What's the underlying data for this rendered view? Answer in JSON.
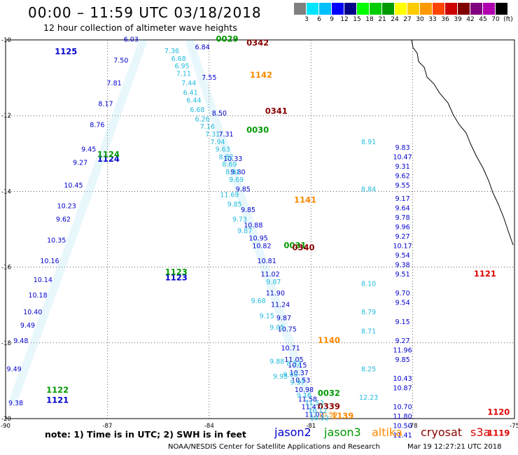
{
  "header": {
    "title": "00:00 – 11:59 UTC 03/18/2018",
    "subtitle": "12 hour collection of altimeter wave heights"
  },
  "color_scale": {
    "labels": [
      "3",
      "6",
      "9",
      "12",
      "15",
      "18",
      "21",
      "24",
      "27",
      "30",
      "33",
      "36",
      "39",
      "42",
      "45",
      "70",
      "(ft)"
    ],
    "colors": [
      "#808080",
      "#00e5ff",
      "#00bfff",
      "#0000ff",
      "#00008b",
      "#00ff00",
      "#00cc00",
      "#009900",
      "#ffff00",
      "#ffcc00",
      "#ff9900",
      "#ff4400",
      "#cc0000",
      "#800000",
      "#800080",
      "#b000b0",
      "#000000"
    ]
  },
  "chart_data": {
    "type": "scatter",
    "title": "00:00 – 11:59 UTC 03/18/2018",
    "subtitle": "12 hour collection of altimeter wave heights",
    "x_ticks": [
      "-90",
      "-87",
      "-84",
      "-81",
      "-78",
      "-75"
    ],
    "y_ticks": [
      "-10",
      "-12",
      "-14",
      "-16",
      "-18",
      "-20"
    ],
    "xlim": [
      -90,
      -75
    ],
    "ylim": [
      -20,
      -10
    ],
    "grid": true,
    "tracks": [
      {
        "satellite": "jason2",
        "color": "#0000cc",
        "pass_labels": [
          {
            "text": "1125",
            "lon": -88.55,
            "lat": -10.38,
            "color": "#0000cc"
          },
          {
            "text": "1124",
            "lon": -87.3,
            "lat": -13.22,
            "color": "#0000cc"
          },
          {
            "text": "1123",
            "lon": -85.3,
            "lat": -16.35,
            "color": "#0000cc"
          },
          {
            "text": "1121",
            "lon": -88.8,
            "lat": -19.58,
            "color": "#0000cc"
          }
        ],
        "points": [
          {
            "lon": -86.3,
            "lat": -10.05,
            "swh": "6.03"
          },
          {
            "lon": -86.6,
            "lat": -10.6,
            "swh": "7.50"
          },
          {
            "lon": -86.8,
            "lat": -11.2,
            "swh": "7.81"
          },
          {
            "lon": -87.05,
            "lat": -11.75,
            "swh": "8.17"
          },
          {
            "lon": -87.3,
            "lat": -12.3,
            "swh": "8.76"
          },
          {
            "lon": -87.55,
            "lat": -12.95,
            "swh": "9.45"
          },
          {
            "lon": -87.8,
            "lat": -13.3,
            "swh": "9.27"
          },
          {
            "lon": -88.0,
            "lat": -13.9,
            "swh": "10.45"
          },
          {
            "lon": -88.2,
            "lat": -14.45,
            "swh": "10.23"
          },
          {
            "lon": -88.3,
            "lat": -14.8,
            "swh": "9.62"
          },
          {
            "lon": -88.5,
            "lat": -15.35,
            "swh": "10.35"
          },
          {
            "lon": -88.7,
            "lat": -15.9,
            "swh": "10.16"
          },
          {
            "lon": -88.9,
            "lat": -16.4,
            "swh": "10.14"
          },
          {
            "lon": -89.05,
            "lat": -16.8,
            "swh": "10.18"
          },
          {
            "lon": -89.2,
            "lat": -17.25,
            "swh": "10.40"
          },
          {
            "lon": -89.35,
            "lat": -17.6,
            "swh": "9.49"
          },
          {
            "lon": -89.55,
            "lat": -18.0,
            "swh": "9.48"
          },
          {
            "lon": -89.75,
            "lat": -18.75,
            "swh": "9.49"
          },
          {
            "lon": -89.7,
            "lat": -19.65,
            "swh": "9.38"
          },
          {
            "lon": -84.2,
            "lat": -10.25,
            "swh": "6.84"
          },
          {
            "lon": -84.0,
            "lat": -11.05,
            "swh": "7.55"
          },
          {
            "lon": -83.7,
            "lat": -12.0,
            "swh": "8.50"
          },
          {
            "lon": -83.5,
            "lat": -12.55,
            "swh": "7.31"
          },
          {
            "lon": -83.3,
            "lat": -13.2,
            "swh": "10.33"
          },
          {
            "lon": -83.15,
            "lat": -13.55,
            "swh": "9.80"
          },
          {
            "lon": -83.0,
            "lat": -14.0,
            "swh": "9.85"
          },
          {
            "lon": -82.85,
            "lat": -14.55,
            "swh": "9.85"
          },
          {
            "lon": -82.7,
            "lat": -14.95,
            "swh": "10.88"
          },
          {
            "lon": -82.55,
            "lat": -15.3,
            "swh": "10.95"
          },
          {
            "lon": -82.45,
            "lat": -15.5,
            "swh": "10.82"
          },
          {
            "lon": -82.3,
            "lat": -15.9,
            "swh": "10.81"
          },
          {
            "lon": -82.2,
            "lat": -16.25,
            "swh": "11.02"
          },
          {
            "lon": -82.05,
            "lat": -16.75,
            "swh": "11.90"
          },
          {
            "lon": -81.9,
            "lat": -17.05,
            "swh": "11.24"
          },
          {
            "lon": -81.8,
            "lat": -17.4,
            "swh": "9.87"
          },
          {
            "lon": -81.7,
            "lat": -17.7,
            "swh": "10.75"
          },
          {
            "lon": -81.6,
            "lat": -18.2,
            "swh": "10.71"
          },
          {
            "lon": -81.5,
            "lat": -18.5,
            "swh": "11.05"
          },
          {
            "lon": -81.4,
            "lat": -18.65,
            "swh": "10.15"
          },
          {
            "lon": -81.35,
            "lat": -18.85,
            "swh": "10.37"
          },
          {
            "lon": -81.3,
            "lat": -19.05,
            "swh": "10.53"
          },
          {
            "lon": -81.2,
            "lat": -19.3,
            "swh": "10.98"
          },
          {
            "lon": -81.1,
            "lat": -19.55,
            "swh": "11.58"
          },
          {
            "lon": -81.0,
            "lat": -19.75,
            "swh": "11.47"
          },
          {
            "lon": -80.9,
            "lat": -19.95,
            "swh": "11.02"
          },
          {
            "lon": -78.3,
            "lat": -12.9,
            "swh": "9.83"
          },
          {
            "lon": -78.3,
            "lat": -13.15,
            "swh": "10.47"
          },
          {
            "lon": -78.3,
            "lat": -13.4,
            "swh": "9.31"
          },
          {
            "lon": -78.3,
            "lat": -13.65,
            "swh": "9.62"
          },
          {
            "lon": -78.3,
            "lat": -13.9,
            "swh": "9.55"
          },
          {
            "lon": -78.3,
            "lat": -14.25,
            "swh": "9.17"
          },
          {
            "lon": -78.3,
            "lat": -14.5,
            "swh": "9.64"
          },
          {
            "lon": -78.3,
            "lat": -14.75,
            "swh": "9.78"
          },
          {
            "lon": -78.3,
            "lat": -15.0,
            "swh": "9.96"
          },
          {
            "lon": -78.3,
            "lat": -15.25,
            "swh": "9.27"
          },
          {
            "lon": -78.3,
            "lat": -15.5,
            "swh": "10.17"
          },
          {
            "lon": -78.3,
            "lat": -15.75,
            "swh": "9.54"
          },
          {
            "lon": -78.3,
            "lat": -16.0,
            "swh": "9.38"
          },
          {
            "lon": -78.3,
            "lat": -16.25,
            "swh": "9.51"
          },
          {
            "lon": -78.3,
            "lat": -16.75,
            "swh": "9.70"
          },
          {
            "lon": -78.3,
            "lat": -17.0,
            "swh": "9.54"
          },
          {
            "lon": -78.3,
            "lat": -17.5,
            "swh": "9.15"
          },
          {
            "lon": -78.3,
            "lat": -18.0,
            "swh": "9.27"
          },
          {
            "lon": -78.3,
            "lat": -18.25,
            "swh": "11.96"
          },
          {
            "lon": -78.3,
            "lat": -18.5,
            "swh": "9.85"
          },
          {
            "lon": -78.3,
            "lat": -19.0,
            "swh": "10.43"
          },
          {
            "lon": -78.3,
            "lat": -19.25,
            "swh": "10.87"
          },
          {
            "lon": -78.3,
            "lat": -19.75,
            "swh": "10.70"
          },
          {
            "lon": -78.3,
            "lat": -20.0,
            "swh": "11.80"
          },
          {
            "lon": -78.3,
            "lat": -20.25,
            "swh": "10.50"
          },
          {
            "lon": -78.3,
            "lat": -20.5,
            "swh": "11.41"
          }
        ]
      },
      {
        "satellite": "jason3",
        "color": "#009900",
        "pass_labels": [
          {
            "text": "0029",
            "lon": -83.8,
            "lat": -10.05,
            "color": "#009900"
          },
          {
            "text": "0030",
            "lon": -82.9,
            "lat": -12.45,
            "color": "#009900"
          },
          {
            "text": "1124",
            "lon": -87.3,
            "lat": -13.1,
            "color": "#009900"
          },
          {
            "text": "1123",
            "lon": -85.3,
            "lat": -16.2,
            "color": "#009900"
          },
          {
            "text": "0031",
            "lon": -81.8,
            "lat": -15.5,
            "color": "#009900"
          },
          {
            "text": "0032",
            "lon": -80.8,
            "lat": -19.4,
            "color": "#009900"
          },
          {
            "text": "1122",
            "lon": -88.8,
            "lat": -19.32,
            "color": "#009900"
          }
        ],
        "points": []
      },
      {
        "satellite": "altika",
        "color": "#ff8800",
        "pass_labels": [
          {
            "text": "1142",
            "lon": -82.8,
            "lat": -11.0,
            "color": "#ff8800"
          },
          {
            "text": "1141",
            "lon": -81.5,
            "lat": -14.3,
            "color": "#ff8800"
          },
          {
            "text": "1140",
            "lon": -80.8,
            "lat": -18.0,
            "color": "#ff8800"
          },
          {
            "text": "1139",
            "lon": -80.4,
            "lat": -20.0,
            "color": "#ff8800"
          }
        ],
        "points": [
          {
            "lon": -80.5,
            "lat": -19.95,
            "swh": "10.59"
          }
        ]
      },
      {
        "satellite": "cryosat",
        "color": "#880000",
        "pass_labels": [
          {
            "text": "0342",
            "lon": -82.9,
            "lat": -10.15,
            "color": "#880000"
          },
          {
            "text": "0341",
            "lon": -82.35,
            "lat": -11.95,
            "color": "#880000"
          },
          {
            "text": "0340",
            "lon": -81.55,
            "lat": -15.55,
            "color": "#880000"
          },
          {
            "text": "0339",
            "lon": -80.8,
            "lat": -19.75,
            "color": "#880000"
          }
        ],
        "points": []
      },
      {
        "satellite": "s3a",
        "color": "#dd0000",
        "pass_labels": [
          {
            "text": "1121",
            "lon": -76.2,
            "lat": -16.25,
            "color": "#dd0000"
          },
          {
            "text": "1120",
            "lon": -75.8,
            "lat": -19.9,
            "color": "#dd0000"
          },
          {
            "text": "1119",
            "lon": -75.8,
            "lat": -20.45,
            "color": "#dd0000"
          }
        ],
        "points": []
      },
      {
        "satellite": "cyan-track",
        "color": "#22bbdd",
        "pass_labels": [],
        "points": [
          {
            "lon": -85.1,
            "lat": -10.35,
            "swh": "7.36"
          },
          {
            "lon": -84.9,
            "lat": -10.55,
            "swh": "6.68"
          },
          {
            "lon": -84.8,
            "lat": -10.75,
            "swh": "6.95"
          },
          {
            "lon": -84.75,
            "lat": -10.95,
            "swh": "7.11"
          },
          {
            "lon": -84.6,
            "lat": -11.2,
            "swh": "7.44"
          },
          {
            "lon": -84.55,
            "lat": -11.45,
            "swh": "6.41"
          },
          {
            "lon": -84.45,
            "lat": -11.65,
            "swh": "6.44"
          },
          {
            "lon": -84.35,
            "lat": -11.9,
            "swh": "6.68"
          },
          {
            "lon": -84.2,
            "lat": -12.15,
            "swh": "6.26"
          },
          {
            "lon": -84.05,
            "lat": -12.35,
            "swh": "7.16"
          },
          {
            "lon": -83.9,
            "lat": -12.55,
            "swh": "7.31"
          },
          {
            "lon": -83.75,
            "lat": -12.75,
            "swh": "7.94"
          },
          {
            "lon": -83.6,
            "lat": -12.95,
            "swh": "9.63"
          },
          {
            "lon": -83.5,
            "lat": -13.15,
            "swh": "8.82"
          },
          {
            "lon": -83.4,
            "lat": -13.35,
            "swh": "8.69"
          },
          {
            "lon": -83.3,
            "lat": -13.55,
            "swh": "8.91"
          },
          {
            "lon": -83.2,
            "lat": -13.75,
            "swh": "9.69"
          },
          {
            "lon": -79.3,
            "lat": -12.75,
            "swh": "8.91"
          },
          {
            "lon": -79.3,
            "lat": -14.0,
            "swh": "8.84"
          },
          {
            "lon": -79.3,
            "lat": -16.5,
            "swh": "8.10"
          },
          {
            "lon": -79.3,
            "lat": -17.25,
            "swh": "8.79"
          },
          {
            "lon": -79.3,
            "lat": -17.75,
            "swh": "8.71"
          },
          {
            "lon": -79.3,
            "lat": -18.75,
            "swh": "8.25"
          },
          {
            "lon": -79.3,
            "lat": -19.5,
            "swh": "12.23"
          },
          {
            "lon": -81.5,
            "lat": -18.6,
            "swh": "8.52"
          },
          {
            "lon": -81.6,
            "lat": -18.9,
            "swh": "9.00"
          },
          {
            "lon": -81.9,
            "lat": -18.95,
            "swh": "9.95"
          },
          {
            "lon": -81.4,
            "lat": -19.1,
            "swh": "9.97"
          },
          {
            "lon": -81.2,
            "lat": -19.45,
            "swh": "9.16"
          },
          {
            "lon": -80.9,
            "lat": -19.65,
            "swh": "11.53"
          },
          {
            "lon": -80.8,
            "lat": -19.85,
            "swh": "10.12"
          },
          {
            "lon": -80.75,
            "lat": -20.05,
            "swh": "10.52"
          },
          {
            "lon": -82.0,
            "lat": -18.55,
            "swh": "9.88"
          },
          {
            "lon": -82.0,
            "lat": -17.65,
            "swh": "9.05"
          },
          {
            "lon": -82.3,
            "lat": -17.35,
            "swh": "9.15"
          },
          {
            "lon": -82.55,
            "lat": -16.95,
            "swh": "9.68"
          },
          {
            "lon": -82.1,
            "lat": -16.45,
            "swh": "9.87"
          },
          {
            "lon": -82.95,
            "lat": -15.1,
            "swh": "9.87"
          },
          {
            "lon": -83.1,
            "lat": -14.8,
            "swh": "9.73"
          },
          {
            "lon": -83.25,
            "lat": -14.4,
            "swh": "9.85"
          },
          {
            "lon": -83.4,
            "lat": -14.15,
            "swh": "11.69"
          }
        ]
      }
    ]
  },
  "footer": {
    "note": "note: 1) Time is in UTC; 2) SWH is in feet",
    "satellites": [
      {
        "name": "jason2",
        "color": "#0000cc"
      },
      {
        "name": "jason3",
        "color": "#009900"
      },
      {
        "name": "altika",
        "color": "#ff8800"
      },
      {
        "name": "cryosat",
        "color": "#880000"
      },
      {
        "name": "s3a",
        "color": "#dd0000"
      }
    ],
    "credit": "NOAA/NESDIS Center for Satellite Applications and Research",
    "generated": "Mar 19 12:27:21 UTC 2018"
  }
}
